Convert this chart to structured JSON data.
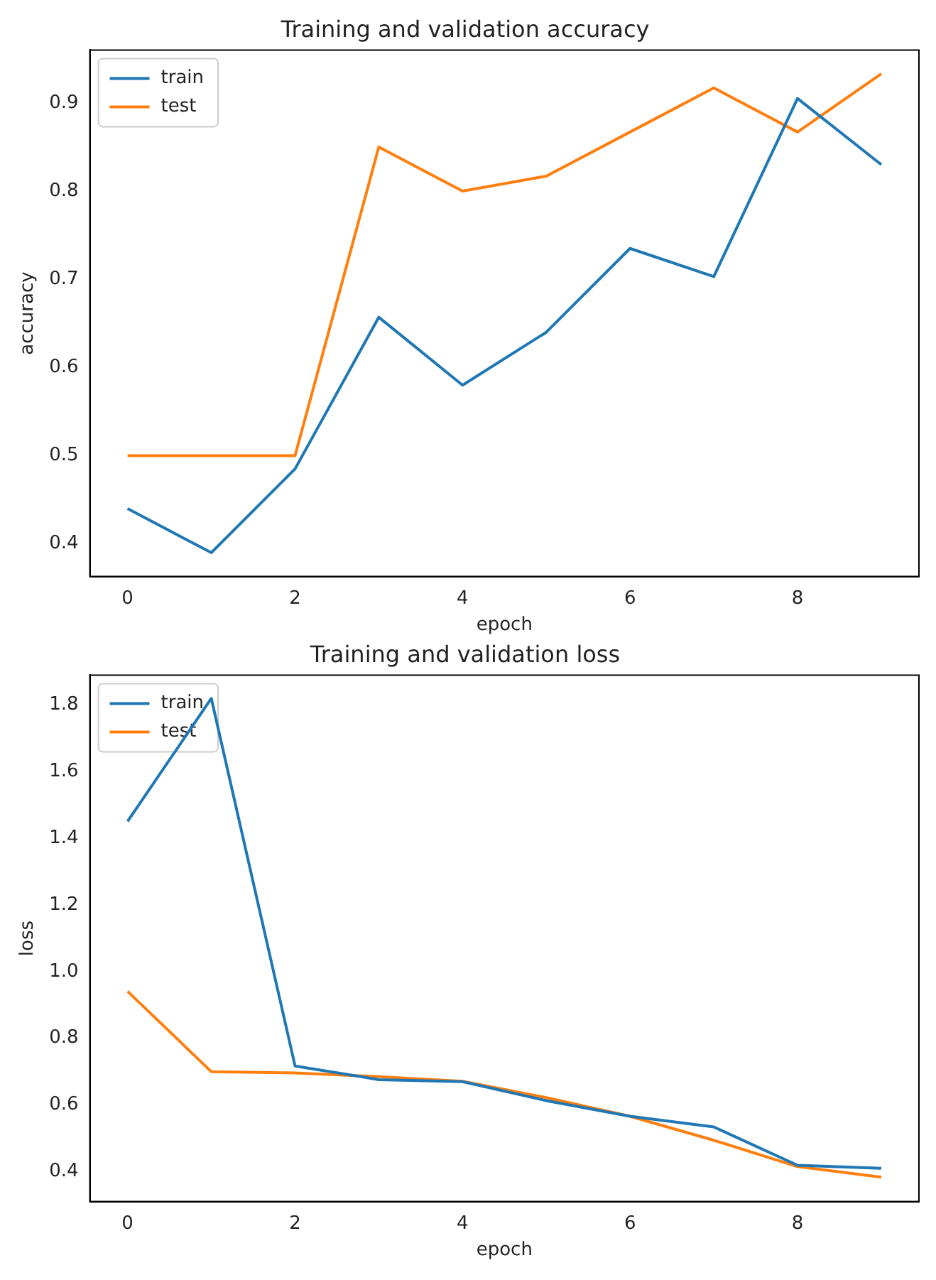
{
  "chart_data": [
    {
      "type": "line",
      "title": "Training and validation accuracy",
      "xlabel": "epoch",
      "ylabel": "accuracy",
      "x": [
        0,
        1,
        2,
        3,
        4,
        5,
        6,
        7,
        8,
        9
      ],
      "series": [
        {
          "name": "train",
          "color": "#1f77b4",
          "values": [
            0.44,
            0.39,
            0.485,
            0.657,
            0.58,
            0.64,
            0.735,
            0.703,
            0.905,
            0.83
          ]
        },
        {
          "name": "test",
          "color": "#ff7f0e",
          "values": [
            0.5,
            0.5,
            0.5,
            0.85,
            0.8,
            0.817,
            0.867,
            0.917,
            0.867,
            0.933
          ]
        }
      ],
      "xlim": [
        -0.45,
        9.45
      ],
      "xticks": [
        0,
        2,
        4,
        6,
        8
      ],
      "ylim": [
        0.363,
        0.96
      ],
      "yticks": [
        0.4,
        0.5,
        0.6,
        0.7,
        0.8,
        0.9
      ],
      "grid": false,
      "legend": "top left",
      "marker": "none",
      "line_style": "solid"
    },
    {
      "type": "line",
      "title": "Training and validation loss",
      "xlabel": "epoch",
      "ylabel": "loss",
      "x": [
        0,
        1,
        2,
        3,
        4,
        5,
        6,
        7,
        8,
        9
      ],
      "series": [
        {
          "name": "train",
          "color": "#1f77b4",
          "values": [
            1.451,
            1.82,
            0.717,
            0.676,
            0.67,
            0.613,
            0.566,
            0.534,
            0.419,
            0.41
          ]
        },
        {
          "name": "test",
          "color": "#ff7f0e",
          "values": [
            0.941,
            0.7,
            0.696,
            0.685,
            0.671,
            0.622,
            0.566,
            0.494,
            0.415,
            0.383
          ]
        }
      ],
      "xlim": [
        -0.45,
        9.45
      ],
      "xticks": [
        0,
        2,
        4,
        6,
        8
      ],
      "ylim": [
        0.31,
        1.89
      ],
      "yticks": [
        {
          "value": 0.4,
          "label": "0.4"
        },
        {
          "value": 0.6,
          "label": "0.6"
        },
        {
          "value": 0.8,
          "label": "0.8"
        },
        {
          "value": 1.0,
          "label": "1.0"
        },
        {
          "value": 1.2,
          "label": "1.2"
        },
        {
          "value": 1.4,
          "label": "1.4"
        },
        {
          "value": 1.6,
          "label": "1.6"
        },
        {
          "value": 1.8,
          "label": "1.8"
        }
      ],
      "grid": false,
      "legend": "top left",
      "marker": "none",
      "line_style": "solid"
    }
  ]
}
